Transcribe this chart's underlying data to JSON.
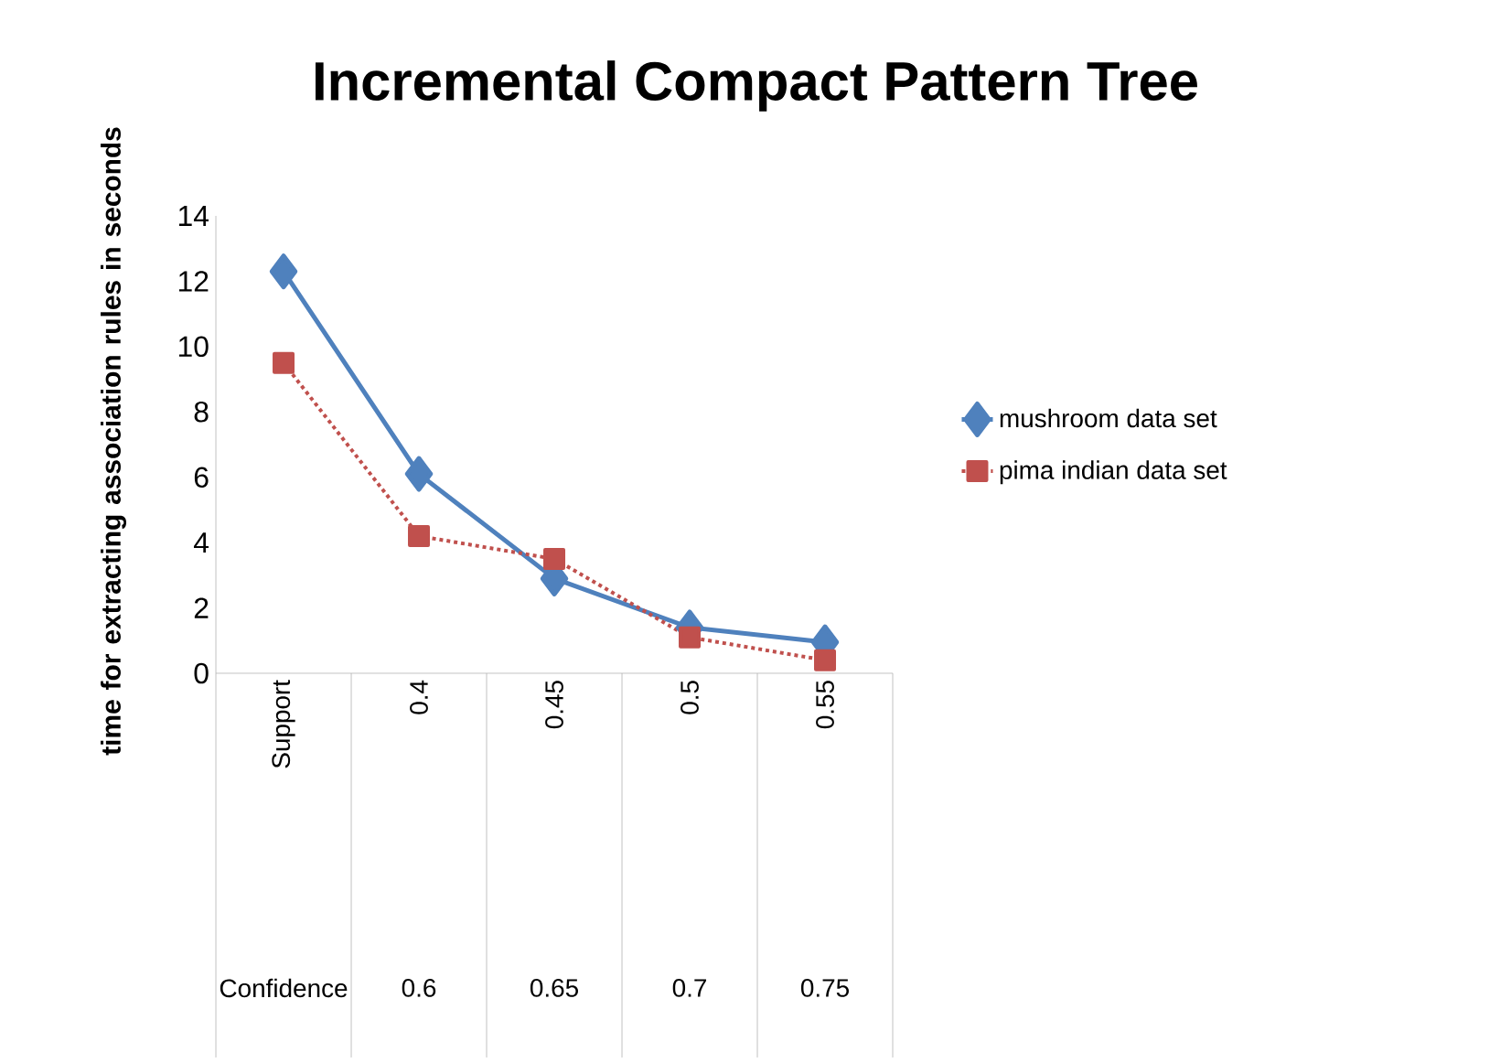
{
  "chart_data": {
    "type": "line",
    "title": "Incremental Compact Pattern Tree",
    "ylabel": "time for extracting association  rules in seconds",
    "categories": [
      "Support",
      "0.4",
      "0.45",
      "0.5",
      "0.55"
    ],
    "annotations": [
      "Confidence",
      "0.6",
      "0.65",
      "0.7",
      "0.75"
    ],
    "series": [
      {
        "name": "mushroom data set",
        "color": "#4f81bd",
        "marker": "diamond",
        "line_style": "solid",
        "values": [
          12.3,
          6.1,
          2.9,
          1.4,
          0.95
        ]
      },
      {
        "name": "pima indian data set",
        "color": "#c0504d",
        "marker": "square",
        "line_style": "dotted",
        "values": [
          9.5,
          4.2,
          3.5,
          1.1,
          0.4
        ]
      }
    ],
    "ylim": [
      0,
      14
    ],
    "yticks": [
      0,
      2,
      4,
      6,
      8,
      10,
      12,
      14
    ],
    "grid": false,
    "legend": "right"
  }
}
